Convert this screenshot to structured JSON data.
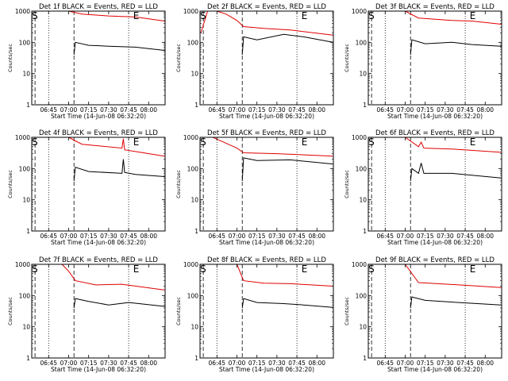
{
  "figure": {
    "background": "#ffffff",
    "colors": {
      "events": "#000000",
      "lld": "#e00000",
      "axes": "#000000"
    }
  },
  "chart_data": [
    {
      "type": "line",
      "title": "Det 1f BLACK = Events, RED = LLD",
      "xlabel": "Start Time (14-Jun-08 06:32:20)",
      "ylabel": "Counts/sec",
      "x_tick_labels": [
        "06:45",
        "07:00",
        "07:15",
        "07:30",
        "07:45",
        "08:00"
      ],
      "y_tick_labels": [
        "1",
        "10",
        "100",
        "1000"
      ],
      "yscale": "log",
      "ylim": [
        1,
        1000
      ],
      "markers": [
        {
          "label": "S",
          "x": "06:33"
        },
        {
          "label": "E",
          "x": "07:49"
        }
      ],
      "series": [
        {
          "color": "#e00000",
          "x": [
            "06:33",
            "06:35",
            "07:00",
            "07:10",
            "07:30",
            "07:50",
            "08:12"
          ],
          "y": [
            1000,
            1000,
            1000,
            800,
            700,
            650,
            480
          ]
        },
        {
          "color": "#000000",
          "x": [
            "07:04",
            "07:05",
            "07:15",
            "07:30",
            "07:50",
            "08:12"
          ],
          "y": [
            40,
            100,
            80,
            75,
            70,
            55
          ]
        }
      ]
    },
    {
      "type": "line",
      "title": "Det 2f BLACK = Events, RED = LLD",
      "xlabel": "Start Time (14-Jun-08 06:32:20)",
      "ylabel": "Counts/sec",
      "x_tick_labels": [
        "06:45",
        "07:00",
        "07:15",
        "07:30",
        "07:45",
        "08:00"
      ],
      "y_tick_labels": [
        "1",
        "10",
        "100",
        "1000"
      ],
      "yscale": "log",
      "ylim": [
        1,
        1000
      ],
      "markers": [
        {
          "label": "S",
          "x": "06:33"
        },
        {
          "label": "E",
          "x": "07:49"
        }
      ],
      "series": [
        {
          "color": "#e00000",
          "x": [
            "06:33",
            "06:38",
            "06:45",
            "06:52",
            "07:00",
            "07:05",
            "07:20",
            "07:40",
            "08:12"
          ],
          "y": [
            200,
            1000,
            1000,
            800,
            500,
            320,
            280,
            250,
            170
          ]
        },
        {
          "color": "#000000",
          "x": [
            "07:04",
            "07:05",
            "07:15",
            "07:35",
            "07:50",
            "08:12"
          ],
          "y": [
            40,
            150,
            120,
            180,
            150,
            100
          ]
        }
      ]
    },
    {
      "type": "line",
      "title": "Det 3f BLACK = Events, RED = LLD",
      "xlabel": "Start Time (14-Jun-08 06:32:20)",
      "ylabel": "Counts/sec",
      "x_tick_labels": [
        "06:45",
        "07:00",
        "07:15",
        "07:30",
        "07:45",
        "08:00"
      ],
      "y_tick_labels": [
        "1",
        "10",
        "100",
        "1000"
      ],
      "yscale": "log",
      "ylim": [
        1,
        1000
      ],
      "markers": [
        {
          "label": "S",
          "x": "06:33"
        },
        {
          "label": "E",
          "x": "07:49"
        }
      ],
      "series": [
        {
          "color": "#e00000",
          "x": [
            "06:33",
            "06:40",
            "07:00",
            "07:10",
            "07:35",
            "07:50",
            "08:12"
          ],
          "y": [
            1000,
            1000,
            1000,
            600,
            500,
            480,
            380
          ]
        },
        {
          "color": "#000000",
          "x": [
            "07:04",
            "07:05",
            "07:15",
            "07:35",
            "07:50",
            "08:12"
          ],
          "y": [
            40,
            120,
            90,
            100,
            85,
            75
          ]
        }
      ]
    },
    {
      "type": "line",
      "title": "Det 4f BLACK = Events, RED = LLD",
      "xlabel": "Start Time (14-Jun-08 06:32:20)",
      "ylabel": "Counts/sec",
      "x_tick_labels": [
        "06:45",
        "07:00",
        "07:15",
        "07:30",
        "07:45",
        "08:00"
      ],
      "y_tick_labels": [
        "1",
        "10",
        "100",
        "1000"
      ],
      "yscale": "log",
      "ylim": [
        1,
        1000
      ],
      "markers": [
        {
          "label": "S",
          "x": "06:33"
        },
        {
          "label": "E",
          "x": "07:49"
        }
      ],
      "series": [
        {
          "color": "#e00000",
          "x": [
            "06:33",
            "06:40",
            "07:00",
            "07:10",
            "07:40",
            "07:41",
            "07:42",
            "07:50",
            "08:12"
          ],
          "y": [
            1000,
            1000,
            1000,
            600,
            450,
            900,
            400,
            350,
            250
          ]
        },
        {
          "color": "#000000",
          "x": [
            "07:04",
            "07:05",
            "07:15",
            "07:40",
            "07:41",
            "07:42",
            "07:50",
            "08:12"
          ],
          "y": [
            40,
            110,
            80,
            70,
            200,
            75,
            65,
            55
          ]
        }
      ]
    },
    {
      "type": "line",
      "title": "Det 5f BLACK = Events, RED = LLD",
      "xlabel": "Start Time (14-Jun-08 06:32:20)",
      "ylabel": "Counts/sec",
      "x_tick_labels": [
        "06:45",
        "07:00",
        "07:15",
        "07:30",
        "07:45",
        "08:00"
      ],
      "y_tick_labels": [
        "1",
        "10",
        "100",
        "1000"
      ],
      "yscale": "log",
      "ylim": [
        1,
        1000
      ],
      "markers": [
        {
          "label": "S",
          "x": "06:33"
        },
        {
          "label": "E",
          "x": "07:49"
        }
      ],
      "series": [
        {
          "color": "#e00000",
          "x": [
            "06:33",
            "06:42",
            "06:50",
            "07:00",
            "07:05",
            "07:30",
            "08:12"
          ],
          "y": [
            1000,
            1000,
            700,
            450,
            320,
            300,
            250
          ]
        },
        {
          "color": "#000000",
          "x": [
            "07:04",
            "07:05",
            "07:15",
            "07:40",
            "08:12"
          ],
          "y": [
            40,
            220,
            180,
            190,
            140
          ]
        }
      ]
    },
    {
      "type": "line",
      "title": "Det 6f BLACK = Events, RED = LLD",
      "xlabel": "Start Time (14-Jun-08 06:32:20)",
      "ylabel": "Counts/sec",
      "x_tick_labels": [
        "06:45",
        "07:00",
        "07:15",
        "07:30",
        "07:45",
        "08:00"
      ],
      "y_tick_labels": [
        "1",
        "10",
        "100",
        "1000"
      ],
      "yscale": "log",
      "ylim": [
        1,
        1000
      ],
      "markers": [
        {
          "label": "S",
          "x": "06:33"
        },
        {
          "label": "E",
          "x": "07:49"
        }
      ],
      "series": [
        {
          "color": "#e00000",
          "x": [
            "06:33",
            "06:40",
            "07:00",
            "07:10",
            "07:12",
            "07:14",
            "07:35",
            "08:12"
          ],
          "y": [
            1000,
            1000,
            1000,
            500,
            700,
            450,
            420,
            330
          ]
        },
        {
          "color": "#000000",
          "x": [
            "07:04",
            "07:05",
            "07:10",
            "07:12",
            "07:14",
            "07:35",
            "08:12"
          ],
          "y": [
            40,
            100,
            70,
            150,
            70,
            70,
            50
          ]
        }
      ]
    },
    {
      "type": "line",
      "title": "Det 7f BLACK = Events, RED = LLD",
      "xlabel": "Start Time (14-Jun-08 06:32:20)",
      "ylabel": "Counts/sec",
      "x_tick_labels": [
        "06:45",
        "07:00",
        "07:15",
        "07:30",
        "07:45",
        "08:00"
      ],
      "y_tick_labels": [
        "1",
        "10",
        "100",
        "1000"
      ],
      "yscale": "log",
      "ylim": [
        1,
        1000
      ],
      "markers": [
        {
          "label": "S",
          "x": "06:33"
        },
        {
          "label": "E",
          "x": "07:49"
        }
      ],
      "series": [
        {
          "color": "#e00000",
          "x": [
            "06:33",
            "06:40",
            "06:55",
            "07:00",
            "07:05",
            "07:20",
            "07:40",
            "08:12"
          ],
          "y": [
            1000,
            1000,
            1000,
            600,
            300,
            220,
            230,
            150
          ]
        },
        {
          "color": "#000000",
          "x": [
            "07:04",
            "07:05",
            "07:15",
            "07:30",
            "07:45",
            "08:12"
          ],
          "y": [
            40,
            80,
            65,
            50,
            60,
            45
          ]
        }
      ]
    },
    {
      "type": "line",
      "title": "Det 8f BLACK = Events, RED = LLD",
      "xlabel": "Start Time (14-Jun-08 06:32:20)",
      "ylabel": "Counts/sec",
      "x_tick_labels": [
        "06:45",
        "07:00",
        "07:15",
        "07:30",
        "07:45",
        "08:00"
      ],
      "y_tick_labels": [
        "1",
        "10",
        "100",
        "1000"
      ],
      "yscale": "log",
      "ylim": [
        1,
        1000
      ],
      "markers": [
        {
          "label": "S",
          "x": "06:33"
        },
        {
          "label": "E",
          "x": "07:49"
        }
      ],
      "series": [
        {
          "color": "#e00000",
          "x": [
            "06:33",
            "06:40",
            "07:00",
            "07:05",
            "07:20",
            "07:40",
            "08:12"
          ],
          "y": [
            1000,
            1000,
            1000,
            300,
            250,
            240,
            200
          ]
        },
        {
          "color": "#000000",
          "x": [
            "07:04",
            "07:05",
            "07:15",
            "07:35",
            "07:50",
            "08:12"
          ],
          "y": [
            40,
            80,
            60,
            55,
            50,
            42
          ]
        }
      ]
    },
    {
      "type": "line",
      "title": "Det 9f BLACK = Events, RED = LLD",
      "xlabel": "Start Time (14-Jun-08 06:32:20)",
      "ylabel": "Counts/sec",
      "x_tick_labels": [
        "06:45",
        "07:00",
        "07:15",
        "07:30",
        "07:45",
        "08:00"
      ],
      "y_tick_labels": [
        "1",
        "10",
        "100",
        "1000"
      ],
      "yscale": "log",
      "ylim": [
        1,
        1000
      ],
      "markers": [
        {
          "label": "S",
          "x": "06:33"
        },
        {
          "label": "E",
          "x": "07:49"
        }
      ],
      "series": [
        {
          "color": "#e00000",
          "x": [
            "06:33",
            "06:40",
            "07:00",
            "07:10",
            "07:40",
            "08:12"
          ],
          "y": [
            1000,
            1000,
            1000,
            260,
            220,
            180
          ]
        },
        {
          "color": "#000000",
          "x": [
            "07:04",
            "07:05",
            "07:15",
            "07:40",
            "08:12"
          ],
          "y": [
            40,
            90,
            70,
            60,
            50
          ]
        }
      ]
    }
  ]
}
